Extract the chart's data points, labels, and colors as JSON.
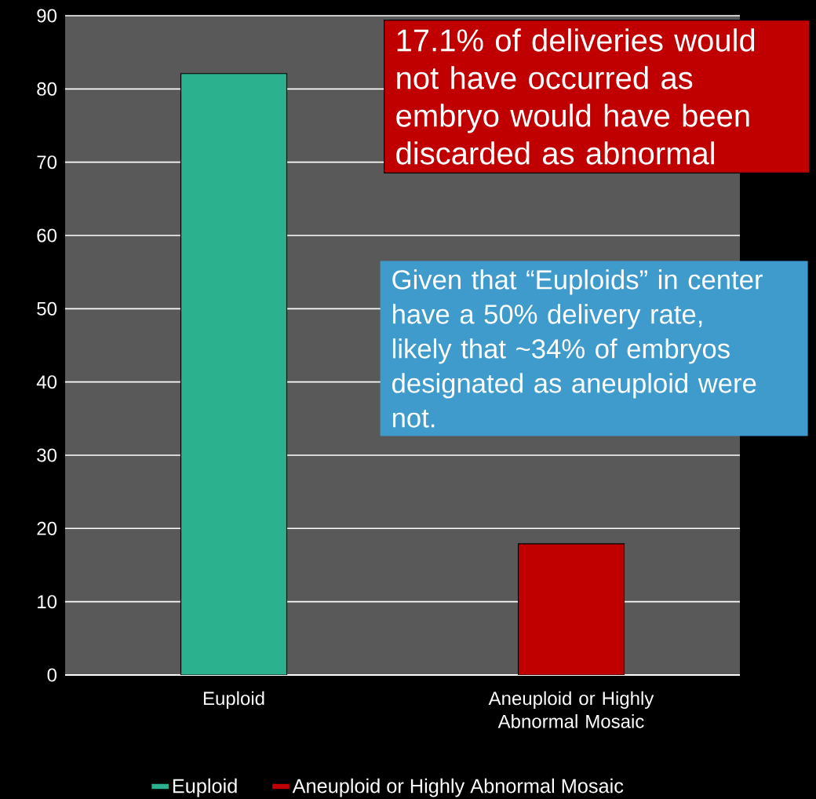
{
  "chart_data": {
    "type": "bar",
    "categories": [
      "Euploid",
      "Aneuploid or Highly Abnormal Mosaic"
    ],
    "series": [
      {
        "name": "Euploid",
        "color": "#2bb18d",
        "values": [
          82.1,
          null
        ]
      },
      {
        "name": "Aneuploid or Highly Abnormal Mosaic",
        "color": "#c00000",
        "values": [
          null,
          17.9
        ]
      }
    ],
    "ylim": [
      0,
      90
    ],
    "yticks": [
      0,
      10,
      20,
      30,
      40,
      50,
      60,
      70,
      80,
      90
    ],
    "grid": "y",
    "legend": "bottom",
    "annotations": [
      "17.1% of deliveries would not have occurred as embryo would have been discarded as abnormal",
      "Given that “Euploids” in center have a 50% delivery rate, likely that ~34% of embryos designated as aneuploid were not."
    ]
  }
}
